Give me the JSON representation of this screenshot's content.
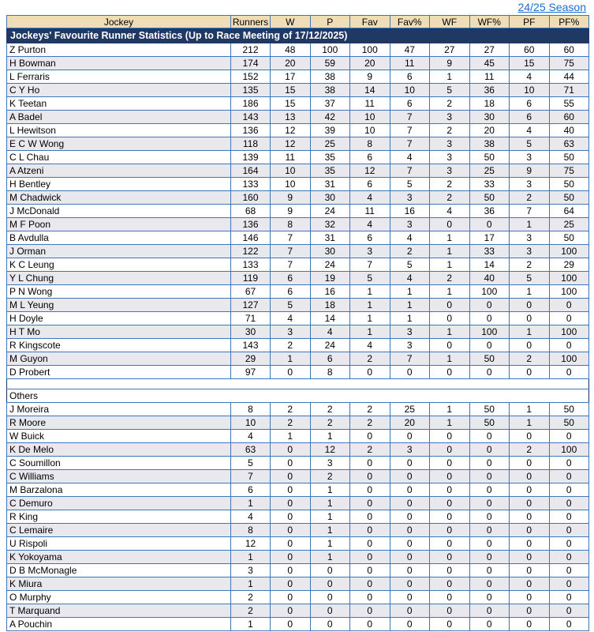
{
  "page": {
    "season_link": "24/25 Season",
    "table_title": "Jockeys' Favourite Runner Statistics (Up to Race Meeting of 17/12/2025)",
    "others_label": "Others"
  },
  "colors": {
    "title_bg": "#1f3864",
    "header_bg": "#efdcb9",
    "border_blue": "#3f76bb",
    "stripe_gray": "#e9e9ed",
    "link_blue": "#1a6fd4"
  },
  "columns": [
    "Jockey",
    "Runners",
    "W",
    "P",
    "Fav",
    "Fav%",
    "WF",
    "WF%",
    "PF",
    "PF%"
  ],
  "main_rows": [
    [
      "Z Purton",
      212,
      48,
      100,
      100,
      47,
      27,
      27,
      60,
      60
    ],
    [
      "H Bowman",
      174,
      20,
      59,
      20,
      11,
      9,
      45,
      15,
      75
    ],
    [
      "L Ferraris",
      152,
      17,
      38,
      9,
      6,
      1,
      11,
      4,
      44
    ],
    [
      "C Y Ho",
      135,
      15,
      38,
      14,
      10,
      5,
      36,
      10,
      71
    ],
    [
      "K Teetan",
      186,
      15,
      37,
      11,
      6,
      2,
      18,
      6,
      55
    ],
    [
      "A Badel",
      143,
      13,
      42,
      10,
      7,
      3,
      30,
      6,
      60
    ],
    [
      "L Hewitson",
      136,
      12,
      39,
      10,
      7,
      2,
      20,
      4,
      40
    ],
    [
      "E C W Wong",
      118,
      12,
      25,
      8,
      7,
      3,
      38,
      5,
      63
    ],
    [
      "C L Chau",
      139,
      11,
      35,
      6,
      4,
      3,
      50,
      3,
      50
    ],
    [
      "A Atzeni",
      164,
      10,
      35,
      12,
      7,
      3,
      25,
      9,
      75
    ],
    [
      "H Bentley",
      133,
      10,
      31,
      6,
      5,
      2,
      33,
      3,
      50
    ],
    [
      "M Chadwick",
      160,
      9,
      30,
      4,
      3,
      2,
      50,
      2,
      50
    ],
    [
      "J McDonald",
      68,
      9,
      24,
      11,
      16,
      4,
      36,
      7,
      64
    ],
    [
      "M F Poon",
      136,
      8,
      32,
      4,
      3,
      0,
      0,
      1,
      25
    ],
    [
      "B Avdulla",
      146,
      7,
      31,
      6,
      4,
      1,
      17,
      3,
      50
    ],
    [
      "J Orman",
      122,
      7,
      30,
      3,
      2,
      1,
      33,
      3,
      100
    ],
    [
      "K C Leung",
      133,
      7,
      24,
      7,
      5,
      1,
      14,
      2,
      29
    ],
    [
      "Y L Chung",
      119,
      6,
      19,
      5,
      4,
      2,
      40,
      5,
      100
    ],
    [
      "P N Wong",
      67,
      6,
      16,
      1,
      1,
      1,
      100,
      1,
      100
    ],
    [
      "M L Yeung",
      127,
      5,
      18,
      1,
      1,
      0,
      0,
      0,
      0
    ],
    [
      "H Doyle",
      71,
      4,
      14,
      1,
      1,
      0,
      0,
      0,
      0
    ],
    [
      "H T Mo",
      30,
      3,
      4,
      1,
      3,
      1,
      100,
      1,
      100
    ],
    [
      "R Kingscote",
      143,
      2,
      24,
      4,
      3,
      0,
      0,
      0,
      0
    ],
    [
      "M Guyon",
      29,
      1,
      6,
      2,
      7,
      1,
      50,
      2,
      100
    ],
    [
      "D Probert",
      97,
      0,
      8,
      0,
      0,
      0,
      0,
      0,
      0
    ]
  ],
  "others_rows": [
    [
      "J Moreira",
      8,
      2,
      2,
      2,
      25,
      1,
      50,
      1,
      50
    ],
    [
      "R Moore",
      10,
      2,
      2,
      2,
      20,
      1,
      50,
      1,
      50
    ],
    [
      "W Buick",
      4,
      1,
      1,
      0,
      0,
      0,
      0,
      0,
      0
    ],
    [
      "K De Melo",
      63,
      0,
      12,
      2,
      3,
      0,
      0,
      2,
      100
    ],
    [
      "C Soumillon",
      5,
      0,
      3,
      0,
      0,
      0,
      0,
      0,
      0
    ],
    [
      "C Williams",
      7,
      0,
      2,
      0,
      0,
      0,
      0,
      0,
      0
    ],
    [
      "M Barzalona",
      6,
      0,
      1,
      0,
      0,
      0,
      0,
      0,
      0
    ],
    [
      "C Demuro",
      1,
      0,
      1,
      0,
      0,
      0,
      0,
      0,
      0
    ],
    [
      "R King",
      4,
      0,
      1,
      0,
      0,
      0,
      0,
      0,
      0
    ],
    [
      "C Lemaire",
      8,
      0,
      1,
      0,
      0,
      0,
      0,
      0,
      0
    ],
    [
      "U Rispoli",
      12,
      0,
      1,
      0,
      0,
      0,
      0,
      0,
      0
    ],
    [
      "K Yokoyama",
      1,
      0,
      1,
      0,
      0,
      0,
      0,
      0,
      0
    ],
    [
      "D B McMonagle",
      3,
      0,
      0,
      0,
      0,
      0,
      0,
      0,
      0
    ],
    [
      "K Miura",
      1,
      0,
      0,
      0,
      0,
      0,
      0,
      0,
      0
    ],
    [
      "O Murphy",
      2,
      0,
      0,
      0,
      0,
      0,
      0,
      0,
      0
    ],
    [
      "T Marquand",
      2,
      0,
      0,
      0,
      0,
      0,
      0,
      0,
      0
    ],
    [
      "A Pouchin",
      1,
      0,
      0,
      0,
      0,
      0,
      0,
      0,
      0
    ]
  ]
}
